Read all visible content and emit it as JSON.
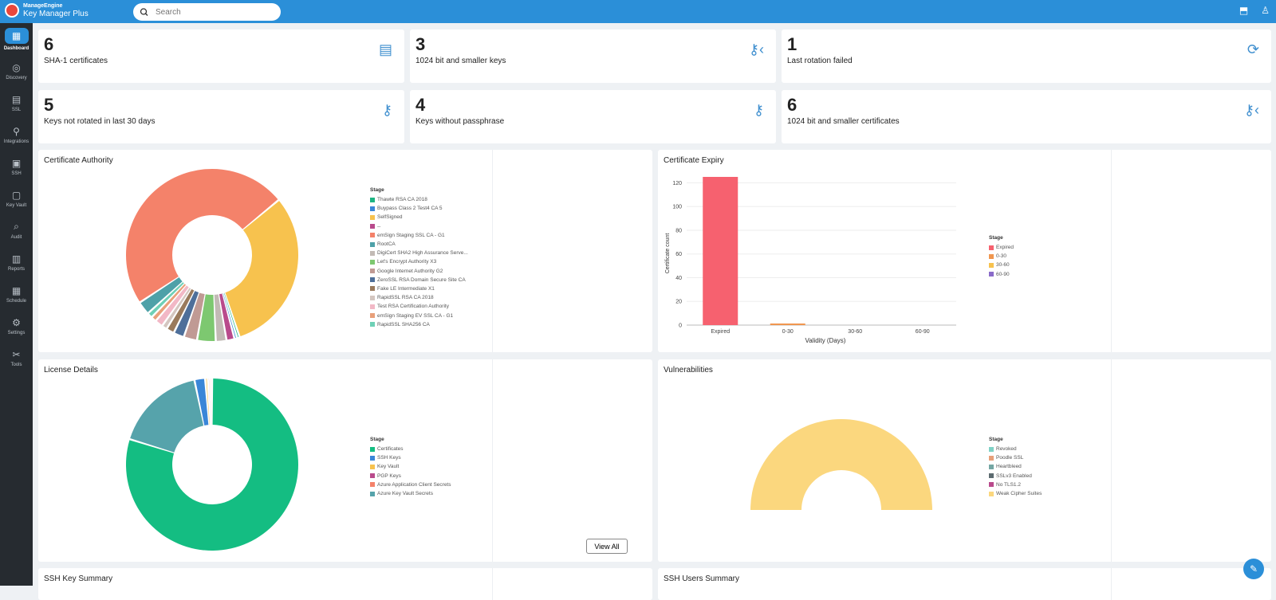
{
  "header": {
    "brand": "ManageEngine",
    "product": "Key Manager Plus",
    "search_placeholder": "Search"
  },
  "sidebar": {
    "items": [
      {
        "label": "Dashboard",
        "icon": "dashboard-icon",
        "glyph": "▦",
        "active": true
      },
      {
        "label": "Discovery",
        "icon": "compass-icon",
        "glyph": "◎"
      },
      {
        "label": "SSL",
        "icon": "certificate-icon",
        "glyph": "▤"
      },
      {
        "label": "Integrations",
        "icon": "plug-icon",
        "glyph": "⚲"
      },
      {
        "label": "SSH",
        "icon": "terminal-icon",
        "glyph": "▣"
      },
      {
        "label": "Key Vault",
        "icon": "vault-icon",
        "glyph": "▢"
      },
      {
        "label": "Audit",
        "icon": "audit-icon",
        "glyph": "⌕"
      },
      {
        "label": "Reports",
        "icon": "report-icon",
        "glyph": "▥"
      },
      {
        "label": "Schedule",
        "icon": "calendar-icon",
        "glyph": "▦"
      },
      {
        "label": "Settings",
        "icon": "gear-icon",
        "glyph": "⚙"
      },
      {
        "label": "Tools",
        "icon": "tools-icon",
        "glyph": "✂"
      }
    ]
  },
  "stats": [
    {
      "value": "6",
      "label": "SHA-1 certificates",
      "icon": "certificate-warning-icon",
      "glyph": "▤"
    },
    {
      "value": "3",
      "label": "1024 bit and smaller keys",
      "icon": "key-icon",
      "glyph": "⚷‹"
    },
    {
      "value": "1",
      "label": "Last rotation failed",
      "icon": "rotation-failed-icon",
      "glyph": "⟳"
    },
    {
      "value": "5",
      "label": "Keys not rotated in last 30 days",
      "icon": "key-clock-icon",
      "glyph": "⚷"
    },
    {
      "value": "4",
      "label": "Keys without passphrase",
      "icon": "key-alert-icon",
      "glyph": "⚷"
    },
    {
      "value": "6",
      "label": "1024 bit and smaller certificates",
      "icon": "key-icon",
      "glyph": "⚷‹"
    }
  ],
  "panels": {
    "ca": {
      "title": "Certificate Authority"
    },
    "expiry": {
      "title": "Certificate Expiry"
    },
    "license": {
      "title": "License Details",
      "button": "View All"
    },
    "vuln": {
      "title": "Vulnerabilities"
    },
    "ssh_key": {
      "title": "SSH Key Summary"
    },
    "ssh_users": {
      "title": "SSH Users Summary"
    }
  },
  "chart_data": [
    {
      "type": "pie",
      "title": "Certificate Authority",
      "legend_title": "Stage",
      "legend": "right",
      "labels": [
        "Thawte RSA CA 2018",
        "Buypass Class 2 Test4 CA 5",
        "SelfSigned",
        "--",
        "emSign Staging SSL CA - G1",
        "RootCA",
        "DigiCert SHA2 High Assurance Serve...",
        "Let's Encrypt Authority X3",
        "Google Internet Authority G2",
        "ZeroSSL RSA Domain Secure Site CA",
        "Fake LE Intermediate X1",
        "RapidSSL RSA CA 2018",
        "Test RSA Certification Authority",
        "emSign Staging EV SSL CA - G1",
        "RapidSSL SHA256 CA"
      ],
      "colors": [
        "#1db482",
        "#3a86d8",
        "#f7c24e",
        "#b94a8c",
        "#f4826a",
        "#4ea1a8",
        "#c2bab5",
        "#7dc870",
        "#c09a94",
        "#4e6f9a",
        "#9a7a5c",
        "#d4c6c0",
        "#f2b8c6",
        "#e8a07a",
        "#6ed0b6"
      ],
      "values": [
        1,
        1,
        62,
        3,
        97,
        5,
        4,
        7,
        5,
        4,
        3,
        2,
        3,
        2,
        2
      ]
    },
    {
      "type": "bar",
      "title": "Certificate Expiry",
      "categories": [
        "Expired",
        "0-30",
        "30-60",
        "60-90"
      ],
      "values": [
        125,
        1,
        0,
        0
      ],
      "colors": [
        "#f6616f",
        "#f0964f",
        "#f7c24e",
        "#8a6bc9"
      ],
      "xlabel": "Validity (Days)",
      "ylabel": "Certificate count",
      "ylim": [
        0,
        125
      ],
      "yticks": [
        0,
        20,
        40,
        60,
        80,
        100,
        120
      ],
      "legend_title": "Stage",
      "legend_labels": [
        "Expired",
        "0-30",
        "30-60",
        "60-90"
      ],
      "grid": true
    },
    {
      "type": "pie",
      "title": "License Details",
      "legend_title": "Stage",
      "legend": "right",
      "labels": [
        "Certificates",
        "SSH Keys",
        "Key Vault",
        "PGP Keys",
        "Azure Application Client Secrets",
        "Azure Key Vault Secrets"
      ],
      "colors": [
        "#14bd82",
        "#3a86d8",
        "#f7c24e",
        "#b94a8c",
        "#f4826a",
        "#56a3ab"
      ],
      "values": [
        80,
        2,
        0.5,
        0.4,
        0.4,
        17
      ]
    },
    {
      "type": "pie",
      "title": "Vulnerabilities",
      "legend_title": "Stage",
      "legend": "right",
      "labels": [
        "Revoked",
        "Poodle SSL",
        "Heartbleed",
        "SSLv3 Enabled",
        "No TLS1.2",
        "Weak Cipher Suites"
      ],
      "colors": [
        "#7fd2c6",
        "#e8a07a",
        "#74a6a3",
        "#5c6b70",
        "#b94a8c",
        "#fbd77e"
      ],
      "values": [
        0,
        0,
        0,
        0,
        0,
        1
      ]
    }
  ]
}
